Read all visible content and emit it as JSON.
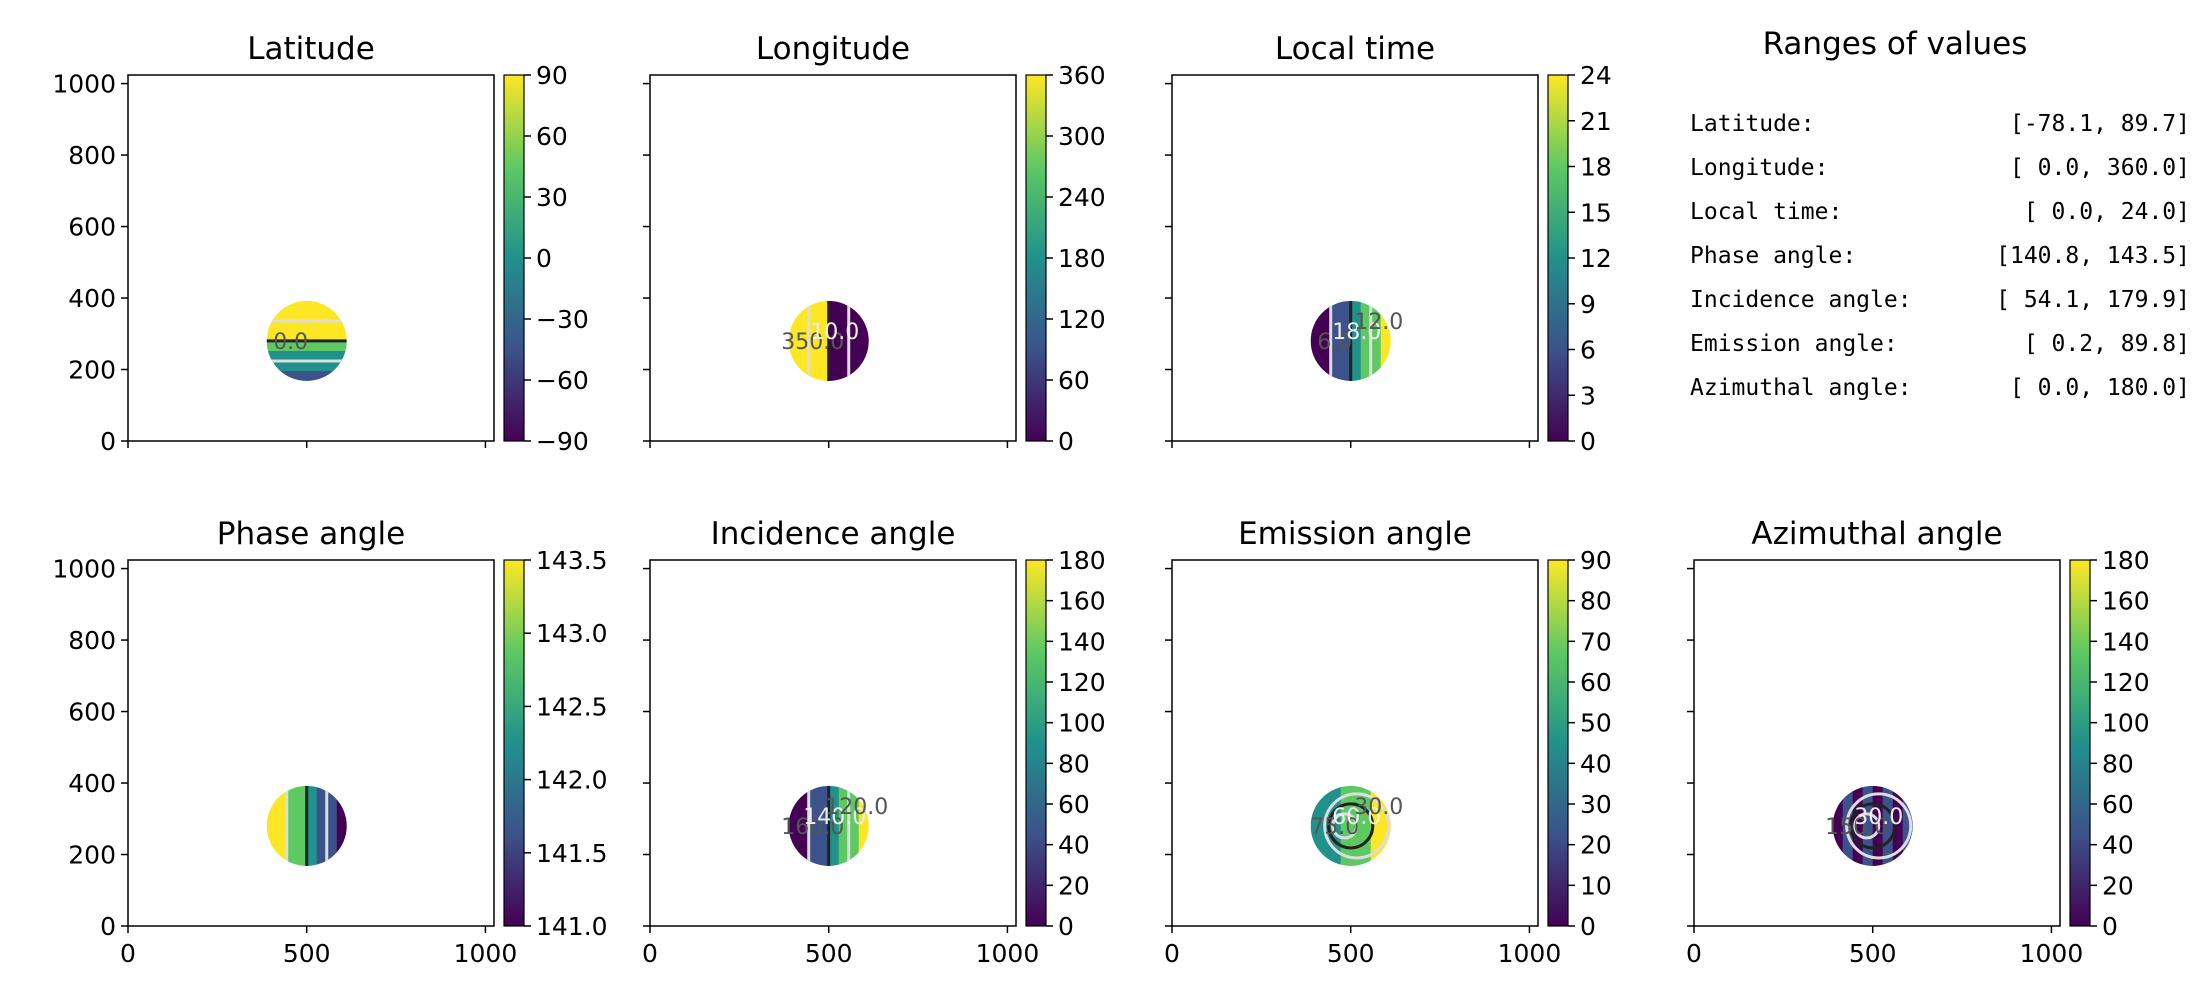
{
  "chart_data": {
    "type": "heatmap",
    "panels": [
      {
        "title": "Latitude",
        "colorbar": {
          "min": -90,
          "max": 90,
          "ticks": [
            "90",
            "60",
            "30",
            "0",
            "−30",
            "−60",
            "−90"
          ]
        },
        "contour_labels": [
          "0.0"
        ],
        "show_y_ticks": true,
        "show_x_ticks": false
      },
      {
        "title": "Longitude",
        "colorbar": {
          "min": 0,
          "max": 360,
          "ticks": [
            "360",
            "300",
            "240",
            "180",
            "120",
            "60",
            "0"
          ]
        },
        "contour_labels": [
          "350.0",
          "10.0"
        ],
        "show_y_ticks": false,
        "show_x_ticks": false
      },
      {
        "title": "Local time",
        "colorbar": {
          "min": 0,
          "max": 24,
          "ticks": [
            "24",
            "21",
            "18",
            "15",
            "12",
            "9",
            "6",
            "3",
            "0"
          ]
        },
        "contour_labels": [
          "6.0",
          "18.0",
          "12.0"
        ],
        "show_y_ticks": false,
        "show_x_ticks": false
      },
      {
        "title": "Phase angle",
        "colorbar": {
          "min": 140.8,
          "max": 143.5,
          "ticks": [
            "143.5",
            "143.0",
            "142.5",
            "142.0",
            "141.5",
            "141.0"
          ]
        },
        "contour_labels": [],
        "show_y_ticks": true,
        "show_x_ticks": true
      },
      {
        "title": "Incidence angle",
        "colorbar": {
          "min": 0,
          "max": 180,
          "ticks": [
            "180",
            "160",
            "140",
            "120",
            "100",
            "80",
            "60",
            "40",
            "20",
            "0"
          ]
        },
        "contour_labels": [
          "160.0",
          "140.0",
          "120.0"
        ],
        "show_y_ticks": false,
        "show_x_ticks": true
      },
      {
        "title": "Emission angle",
        "colorbar": {
          "min": 0,
          "max": 90,
          "ticks": [
            "90",
            "80",
            "70",
            "60",
            "50",
            "40",
            "30",
            "20",
            "10",
            "0"
          ]
        },
        "contour_labels": [
          "75.0",
          "60.0",
          "30.0"
        ],
        "show_y_ticks": false,
        "show_x_ticks": true
      },
      {
        "title": "Azimuthal angle",
        "colorbar": {
          "min": 0,
          "max": 180,
          "ticks": [
            "180",
            "160",
            "140",
            "120",
            "100",
            "80",
            "60",
            "40",
            "20",
            "0"
          ]
        },
        "contour_labels": [
          "150.0",
          "30.0"
        ],
        "show_y_ticks": false,
        "show_x_ticks": true
      }
    ],
    "x_ticks": [
      "0",
      "500",
      "1000"
    ],
    "y_ticks": [
      "0",
      "200",
      "400",
      "600",
      "800",
      "1000"
    ],
    "xlim": [
      0,
      1024
    ],
    "ylim": [
      0,
      1024
    ],
    "disc_center": [
      500,
      280
    ],
    "disc_radius": 112,
    "colormap": [
      "#440154",
      "#3b528b",
      "#21918c",
      "#5ec962",
      "#fde725"
    ],
    "ranges": {
      "title": "Ranges of values",
      "rows": [
        {
          "label": "Latitude:",
          "value": "[-78.1,  89.7]"
        },
        {
          "label": "Longitude:",
          "value": "[  0.0, 360.0]"
        },
        {
          "label": "Local time:",
          "value": "[  0.0,  24.0]"
        },
        {
          "label": "Phase angle:",
          "value": "[140.8, 143.5]"
        },
        {
          "label": "Incidence angle:",
          "value": "[ 54.1, 179.9]"
        },
        {
          "label": "Emission angle:",
          "value": "[  0.2,  89.8]"
        },
        {
          "label": "Azimuthal angle:",
          "value": "[  0.0, 180.0]"
        }
      ]
    }
  }
}
